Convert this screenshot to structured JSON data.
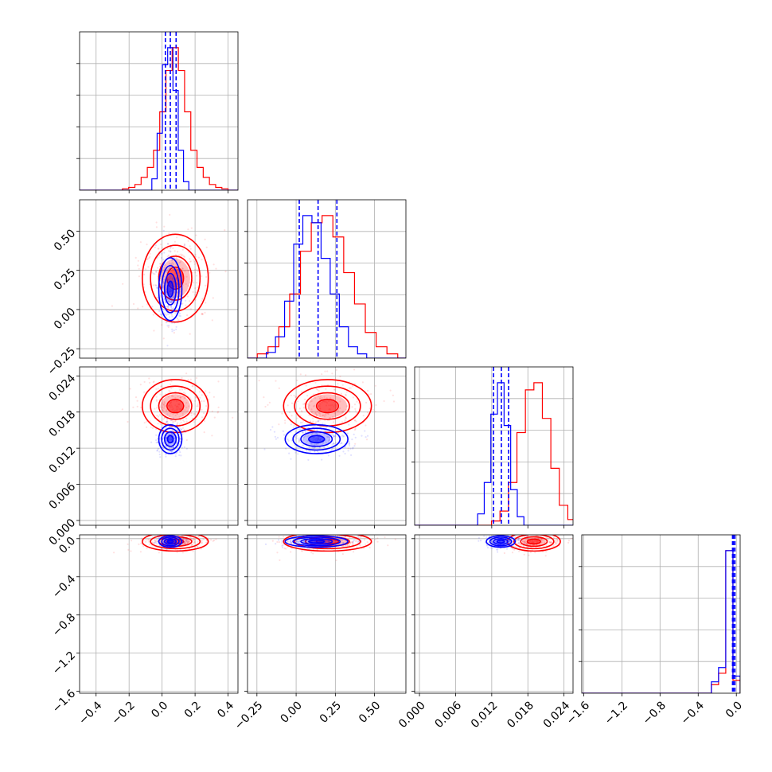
{
  "chart_data": {
    "type": "corner",
    "grid": true,
    "params": [
      {
        "ticks": [
          -0.4,
          -0.2,
          0.0,
          0.2,
          0.4
        ],
        "tick_labels": [
          "−0.4",
          "−0.2",
          "0.0",
          "0.2",
          "0.4"
        ],
        "range": [
          -0.5,
          0.46
        ]
      },
      {
        "ticks": [
          -0.25,
          0.0,
          0.25,
          0.5
        ],
        "tick_labels": [
          "−0.25",
          "0.00",
          "0.25",
          "0.50"
        ],
        "range": [
          -0.31,
          0.7
        ]
      },
      {
        "ticks": [
          0.0,
          0.006,
          0.012,
          0.018,
          0.024
        ],
        "tick_labels": [
          "0.000",
          "0.006",
          "0.012",
          "0.018",
          "0.024"
        ],
        "range": [
          -0.0008,
          0.0255
        ]
      },
      {
        "ticks": [
          -1.6,
          -1.2,
          -0.8,
          -0.4,
          0.0
        ],
        "tick_labels": [
          "−1.6",
          "−1.2",
          "−0.8",
          "−0.4",
          "0.0"
        ],
        "range": [
          -1.62,
          0.04
        ]
      }
    ],
    "series": [
      {
        "color": "#ff0000",
        "centers": [
          0.08,
          0.2,
          0.019,
          -0.03
        ],
        "spreads": [
          0.1,
          0.14,
          0.0022,
          0.05
        ],
        "hist_counts": [
          [
            1,
            2,
            4,
            9,
            16,
            28,
            55,
            84,
            100,
            84,
            55,
            28,
            16,
            9,
            4,
            2,
            1
          ],
          [
            3,
            8,
            22,
            45,
            75,
            95,
            100,
            85,
            60,
            38,
            18,
            8,
            3
          ],
          [
            3,
            10,
            30,
            65,
            95,
            100,
            75,
            40,
            14,
            4
          ],
          [
            0,
            0,
            0,
            0,
            0,
            0,
            0,
            0,
            0,
            0,
            0,
            0,
            0,
            0,
            0,
            0,
            0,
            0,
            6,
            14,
            100,
            9
          ]
        ]
      },
      {
        "color": "#0000ff",
        "centers": [
          0.05,
          0.13,
          0.0135,
          -0.03
        ],
        "spreads": [
          0.035,
          0.1,
          0.0012,
          0.03
        ],
        "hist_counts": [
          [
            8,
            40,
            88,
            100,
            70,
            28,
            6
          ],
          [
            4,
            15,
            40,
            80,
            100,
            95,
            70,
            45,
            22,
            8,
            3
          ],
          [
            8,
            30,
            78,
            100,
            70,
            25,
            6
          ],
          [
            0,
            0,
            0,
            0,
            0,
            0,
            0,
            0,
            0,
            0,
            0,
            0,
            0,
            0,
            0,
            0,
            0,
            0,
            8,
            18,
            100,
            12
          ]
        ],
        "quantiles": [
          [
            0.02,
            0.05,
            0.085
          ],
          [
            0.02,
            0.14,
            0.26
          ],
          [
            0.0123,
            0.0136,
            0.0148
          ],
          [
            -0.04,
            -0.03,
            -0.015
          ]
        ]
      }
    ]
  }
}
